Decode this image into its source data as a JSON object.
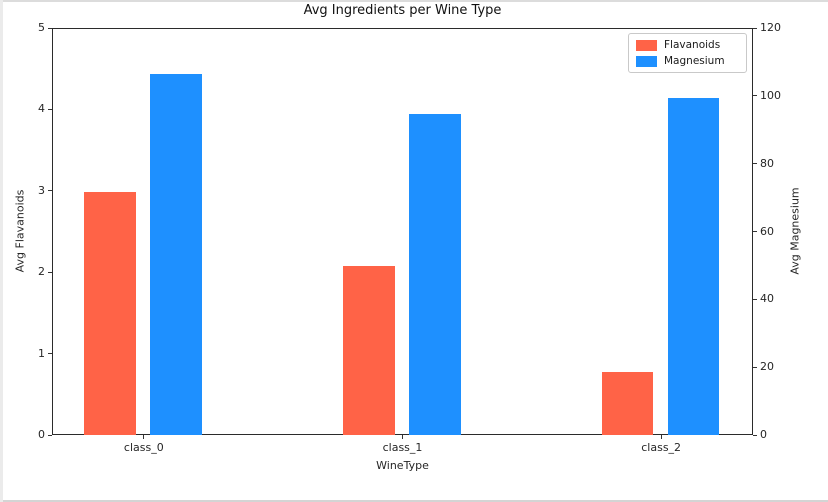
{
  "chart_data": {
    "type": "bar",
    "title": "Avg Ingredients per Wine Type",
    "xlabel": "WineType",
    "ylabel_left": "Avg Flavanoids",
    "ylabel_right": "Avg Magnesium",
    "categories": [
      "class_0",
      "class_1",
      "class_2"
    ],
    "series": [
      {
        "name": "Flavanoids",
        "axis": "left",
        "color": "#ff6347",
        "values": [
          2.98,
          2.08,
          0.78
        ]
      },
      {
        "name": "Magnesium",
        "axis": "right",
        "color": "#1e90ff",
        "values": [
          106.3,
          94.6,
          99.3
        ]
      }
    ],
    "ylim_left": [
      0,
      5
    ],
    "ylim_right": [
      0,
      120
    ],
    "yticks_left": [
      0,
      1,
      2,
      3,
      4,
      5
    ],
    "yticks_right": [
      0,
      20,
      40,
      60,
      80,
      100,
      120
    ],
    "grid": false,
    "legend_position": "upper right"
  }
}
